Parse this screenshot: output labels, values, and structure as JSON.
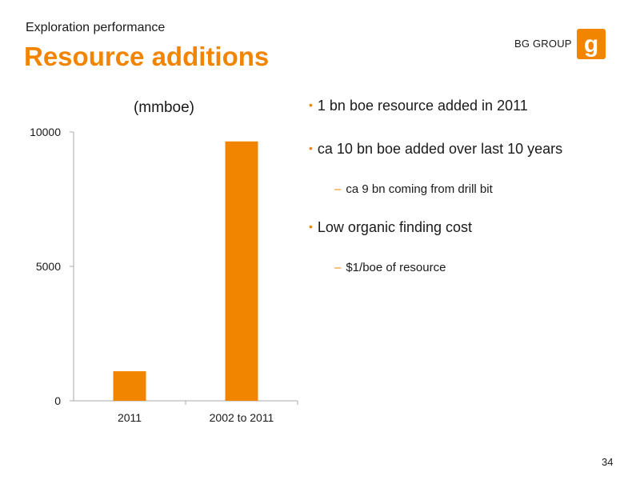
{
  "header": {
    "subtitle": "Exploration performance",
    "title": "Resource additions",
    "company": "BG GROUP"
  },
  "colors": {
    "accent": "#f28500",
    "text": "#1a1a1a",
    "axis": "#aaaaaa"
  },
  "chart_data": {
    "type": "bar",
    "title": "(mmboe)",
    "categories": [
      "2011",
      "2002 to 2011"
    ],
    "values": [
      1100,
      9650
    ],
    "yticks": [
      "0",
      "5000",
      "10000"
    ],
    "ylim": [
      0,
      10000
    ],
    "grid": false,
    "xlabel": "",
    "ylabel": ""
  },
  "bullets": [
    {
      "text": "1 bn boe resource added in 2011",
      "subs": []
    },
    {
      "text": "ca 10 bn boe added over last 10 years",
      "subs": [
        "ca 9 bn coming from drill bit"
      ]
    },
    {
      "text": "Low organic finding cost",
      "subs": [
        "$1/boe of resource"
      ]
    }
  ],
  "footer": {
    "page_number": "34"
  }
}
